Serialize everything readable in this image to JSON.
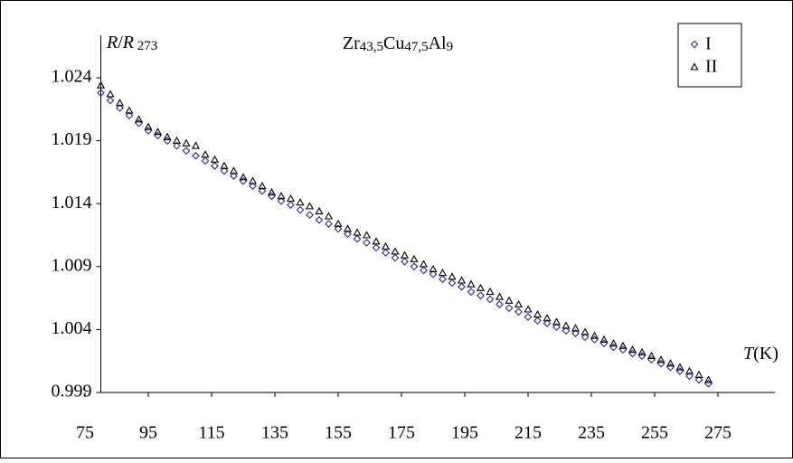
{
  "chart_data": {
    "type": "scatter",
    "title": [
      {
        "text": "Zr"
      },
      {
        "text": "43,5",
        "sub": true
      },
      {
        "text": "Cu"
      },
      {
        "text": "47,5",
        "sub": true
      },
      {
        "text": "Al"
      },
      {
        "text": "9",
        "sub": true
      }
    ],
    "y_label": [
      {
        "text": "R",
        "italic": true
      },
      {
        "text": "/"
      },
      {
        "text": "R",
        "italic": true
      },
      {
        "text": " 273",
        "sub": true
      }
    ],
    "x_label": [
      {
        "text": "T",
        "italic": true
      },
      {
        "text": "(K)"
      }
    ],
    "x": [
      80,
      83,
      86,
      89,
      92,
      95,
      98,
      101,
      104,
      107,
      110,
      113,
      116,
      119,
      122,
      125,
      128,
      131,
      134,
      137,
      140,
      143,
      146,
      149,
      152,
      155,
      158,
      161,
      164,
      167,
      170,
      173,
      176,
      179,
      182,
      185,
      188,
      191,
      194,
      197,
      200,
      203,
      206,
      209,
      212,
      215,
      218,
      221,
      224,
      227,
      230,
      233,
      236,
      239,
      242,
      245,
      248,
      251,
      254,
      257,
      260,
      263,
      266,
      269,
      272
    ],
    "series": [
      {
        "name": "I",
        "color": "#2a2a9c",
        "marker": "diamond",
        "values": [
          1.0228,
          1.0222,
          1.0216,
          1.021,
          1.0204,
          1.0198,
          1.0194,
          1.019,
          1.0186,
          1.0182,
          1.0178,
          1.0174,
          1.017,
          1.0166,
          1.0162,
          1.0158,
          1.0154,
          1.015,
          1.0146,
          1.0142,
          1.0139,
          1.0135,
          1.0131,
          1.0127,
          1.0124,
          1.012,
          1.0116,
          1.0112,
          1.0109,
          1.0105,
          1.0101,
          1.0097,
          1.0094,
          1.009,
          1.0087,
          1.0084,
          1.008,
          1.0077,
          1.0074,
          1.007,
          1.0067,
          1.0064,
          1.006,
          1.0057,
          1.0054,
          1.005,
          1.0047,
          1.0045,
          1.0042,
          1.0039,
          1.0037,
          1.0034,
          1.0032,
          1.0029,
          1.0026,
          1.0024,
          1.0021,
          1.0019,
          1.0016,
          1.0013,
          1.001,
          1.0007,
          1.0003,
          1.0,
          0.9997
        ]
      },
      {
        "name": "II",
        "color": "#000000",
        "marker": "triangle",
        "values": [
          1.0234,
          1.0227,
          1.022,
          1.0214,
          1.0207,
          1.0201,
          1.0197,
          1.0193,
          1.019,
          1.0188,
          1.0186,
          1.0179,
          1.0175,
          1.017,
          1.0166,
          1.0161,
          1.0158,
          1.0154,
          1.0149,
          1.0146,
          1.0144,
          1.0141,
          1.0138,
          1.0134,
          1.013,
          1.0124,
          1.012,
          1.0117,
          1.0115,
          1.011,
          1.0106,
          1.0102,
          1.0099,
          1.0096,
          1.0092,
          1.0088,
          1.0085,
          1.0082,
          1.0079,
          1.0076,
          1.0073,
          1.007,
          1.0066,
          1.0063,
          1.006,
          1.0056,
          1.0052,
          1.0049,
          1.0046,
          1.0043,
          1.0041,
          1.0038,
          1.0035,
          1.0032,
          1.0029,
          1.0027,
          1.0024,
          1.0022,
          1.0019,
          1.0016,
          1.0013,
          1.001,
          1.0007,
          1.0004,
          1.0
        ]
      }
    ],
    "xlim": [
      80,
      293
    ],
    "xticks": [
      75,
      95,
      115,
      135,
      155,
      175,
      195,
      215,
      235,
      255,
      275
    ],
    "ylim": [
      0.999,
      1.0265
    ],
    "yticks": [
      0.999,
      1.004,
      1.009,
      1.014,
      1.019,
      1.024
    ],
    "legend": "top-right"
  }
}
